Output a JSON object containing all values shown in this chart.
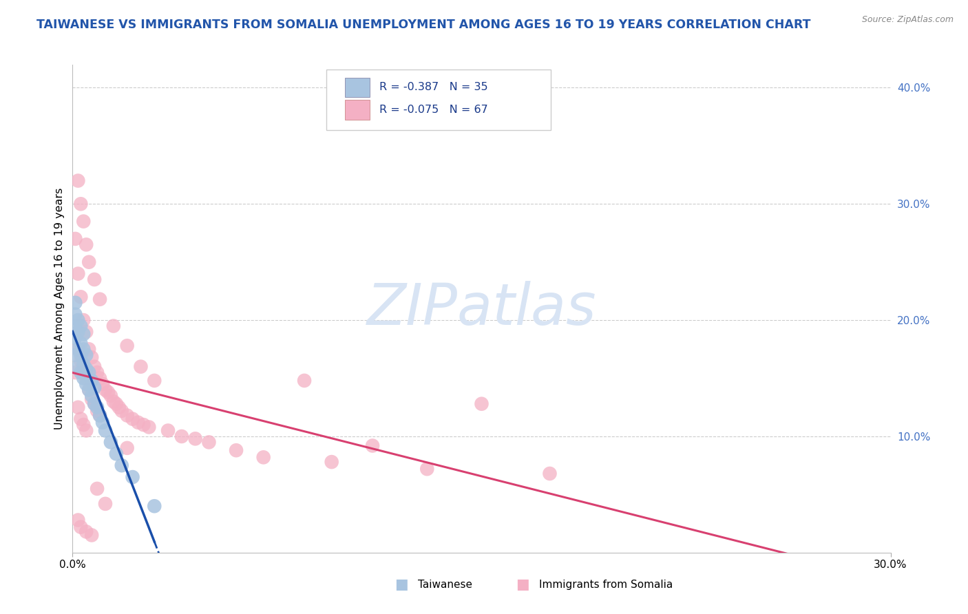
{
  "title": "TAIWANESE VS IMMIGRANTS FROM SOMALIA UNEMPLOYMENT AMONG AGES 16 TO 19 YEARS CORRELATION CHART",
  "source": "Source: ZipAtlas.com",
  "ylabel": "Unemployment Among Ages 16 to 19 years",
  "xlabel_taiwanese": "Taiwanese",
  "xlabel_somalia": "Immigrants from Somalia",
  "xlim": [
    0.0,
    0.3
  ],
  "ylim": [
    0.0,
    0.42
  ],
  "y_ticks_right": [
    0.1,
    0.2,
    0.3,
    0.4
  ],
  "y_tick_labels_right": [
    "10.0%",
    "20.0%",
    "30.0%",
    "40.0%"
  ],
  "color_taiwanese": "#a8c4e0",
  "color_somalia": "#f4b0c4",
  "color_line_taiwanese": "#1a4faa",
  "color_line_somalia": "#d84070",
  "watermark": "ZIPatlas",
  "watermark_color": "#d8e4f4",
  "background_color": "#ffffff",
  "title_color": "#2255aa",
  "source_color": "#888888",
  "tick_color": "#4472c4",
  "legend_r1": "-0.387",
  "legend_n1": "35",
  "legend_r2": "-0.075",
  "legend_n2": "67",
  "taiwanese_x": [
    0.001,
    0.001,
    0.001,
    0.001,
    0.001,
    0.002,
    0.002,
    0.002,
    0.002,
    0.003,
    0.003,
    0.003,
    0.003,
    0.004,
    0.004,
    0.004,
    0.004,
    0.005,
    0.005,
    0.005,
    0.006,
    0.006,
    0.007,
    0.007,
    0.008,
    0.008,
    0.009,
    0.01,
    0.011,
    0.012,
    0.014,
    0.016,
    0.018,
    0.022,
    0.03
  ],
  "taiwanese_y": [
    0.17,
    0.185,
    0.195,
    0.205,
    0.215,
    0.16,
    0.175,
    0.19,
    0.2,
    0.155,
    0.17,
    0.18,
    0.195,
    0.15,
    0.162,
    0.175,
    0.188,
    0.145,
    0.158,
    0.17,
    0.14,
    0.155,
    0.135,
    0.148,
    0.128,
    0.142,
    0.125,
    0.118,
    0.112,
    0.105,
    0.095,
    0.085,
    0.075,
    0.065,
    0.04
  ],
  "somalia_x": [
    0.001,
    0.001,
    0.002,
    0.002,
    0.002,
    0.003,
    0.003,
    0.003,
    0.004,
    0.004,
    0.004,
    0.005,
    0.005,
    0.005,
    0.006,
    0.006,
    0.007,
    0.007,
    0.008,
    0.008,
    0.009,
    0.009,
    0.01,
    0.01,
    0.011,
    0.012,
    0.013,
    0.014,
    0.015,
    0.016,
    0.017,
    0.018,
    0.02,
    0.022,
    0.024,
    0.026,
    0.028,
    0.03,
    0.035,
    0.04,
    0.045,
    0.05,
    0.06,
    0.07,
    0.085,
    0.095,
    0.11,
    0.13,
    0.15,
    0.175,
    0.002,
    0.003,
    0.004,
    0.005,
    0.006,
    0.008,
    0.01,
    0.015,
    0.02,
    0.025,
    0.002,
    0.003,
    0.005,
    0.007,
    0.009,
    0.012,
    0.02
  ],
  "somalia_y": [
    0.27,
    0.155,
    0.24,
    0.175,
    0.125,
    0.22,
    0.165,
    0.115,
    0.2,
    0.155,
    0.11,
    0.19,
    0.15,
    0.105,
    0.175,
    0.14,
    0.168,
    0.132,
    0.16,
    0.128,
    0.155,
    0.122,
    0.15,
    0.118,
    0.145,
    0.14,
    0.138,
    0.135,
    0.13,
    0.128,
    0.125,
    0.122,
    0.118,
    0.115,
    0.112,
    0.11,
    0.108,
    0.148,
    0.105,
    0.1,
    0.098,
    0.095,
    0.088,
    0.082,
    0.148,
    0.078,
    0.092,
    0.072,
    0.128,
    0.068,
    0.32,
    0.3,
    0.285,
    0.265,
    0.25,
    0.235,
    0.218,
    0.195,
    0.178,
    0.16,
    0.028,
    0.022,
    0.018,
    0.015,
    0.055,
    0.042,
    0.09
  ]
}
